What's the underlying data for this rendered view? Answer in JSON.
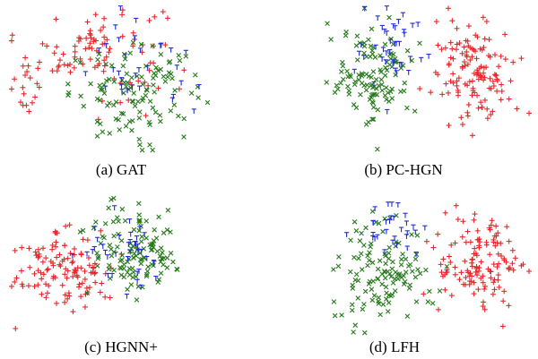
{
  "figure": {
    "panels": [
      {
        "caption": "(a) GAT"
      },
      {
        "caption": "(b) PC-HGN"
      },
      {
        "caption": "(c) HGNN+"
      },
      {
        "caption": "(d) LFH"
      }
    ]
  },
  "legend_markers": {
    "red": {
      "symbol": "+",
      "color": "#e8262a"
    },
    "green": {
      "symbol": "x",
      "color": "#267a1c"
    },
    "blue": {
      "symbol": "tri_down",
      "color": "#1f2bd6"
    }
  },
  "chart_data": [
    {
      "type": "scatter",
      "title": "(a) GAT",
      "xlim": [
        0,
        1
      ],
      "ylim": [
        0,
        1
      ],
      "series": [
        {
          "marker": "+",
          "color": "#e8262a",
          "clusters": [
            {
              "cx": 0.4,
              "cy": 0.7,
              "sx": 0.2,
              "sy": 0.22,
              "n": 95
            },
            {
              "cx": 0.08,
              "cy": 0.45,
              "sx": 0.06,
              "sy": 0.12,
              "n": 16
            }
          ]
        },
        {
          "marker": "x",
          "color": "#267a1c",
          "clusters": [
            {
              "cx": 0.58,
              "cy": 0.4,
              "sx": 0.2,
              "sy": 0.2,
              "n": 115
            }
          ]
        },
        {
          "marker": "v",
          "color": "#1f2bd6",
          "clusters": [
            {
              "cx": 0.58,
              "cy": 0.55,
              "sx": 0.18,
              "sy": 0.22,
              "n": 32
            }
          ]
        }
      ]
    },
    {
      "type": "scatter",
      "title": "(b) PC-HGN",
      "xlim": [
        0,
        1
      ],
      "ylim": [
        0,
        1
      ],
      "series": [
        {
          "marker": "+",
          "color": "#e8262a",
          "clusters": [
            {
              "cx": 0.74,
              "cy": 0.55,
              "sx": 0.14,
              "sy": 0.22,
              "n": 130
            }
          ]
        },
        {
          "marker": "x",
          "color": "#267a1c",
          "clusters": [
            {
              "cx": 0.28,
              "cy": 0.52,
              "sx": 0.13,
              "sy": 0.2,
              "n": 120
            }
          ]
        },
        {
          "marker": "v",
          "color": "#1f2bd6",
          "clusters": [
            {
              "cx": 0.36,
              "cy": 0.7,
              "sx": 0.12,
              "sy": 0.2,
              "n": 40
            }
          ]
        }
      ]
    },
    {
      "type": "scatter",
      "title": "(c) HGNN+",
      "xlim": [
        0,
        1
      ],
      "ylim": [
        0,
        1
      ],
      "series": [
        {
          "marker": "+",
          "color": "#e8262a",
          "clusters": [
            {
              "cx": 0.25,
              "cy": 0.45,
              "sx": 0.14,
              "sy": 0.2,
              "n": 120
            }
          ]
        },
        {
          "marker": "x",
          "color": "#267a1c",
          "clusters": [
            {
              "cx": 0.58,
              "cy": 0.58,
              "sx": 0.13,
              "sy": 0.18,
              "n": 125
            }
          ]
        },
        {
          "marker": "v",
          "color": "#1f2bd6",
          "clusters": [
            {
              "cx": 0.55,
              "cy": 0.55,
              "sx": 0.12,
              "sy": 0.18,
              "n": 38
            }
          ]
        }
      ]
    },
    {
      "type": "scatter",
      "title": "(d) LFH",
      "xlim": [
        0,
        1
      ],
      "ylim": [
        0,
        1
      ],
      "series": [
        {
          "marker": "+",
          "color": "#e8262a",
          "clusters": [
            {
              "cx": 0.76,
              "cy": 0.48,
              "sx": 0.13,
              "sy": 0.22,
              "n": 130
            }
          ]
        },
        {
          "marker": "x",
          "color": "#267a1c",
          "clusters": [
            {
              "cx": 0.33,
              "cy": 0.45,
              "sx": 0.13,
              "sy": 0.22,
              "n": 125
            }
          ]
        },
        {
          "marker": "v",
          "color": "#1f2bd6",
          "clusters": [
            {
              "cx": 0.38,
              "cy": 0.75,
              "sx": 0.1,
              "sy": 0.15,
              "n": 30
            }
          ]
        }
      ]
    }
  ]
}
